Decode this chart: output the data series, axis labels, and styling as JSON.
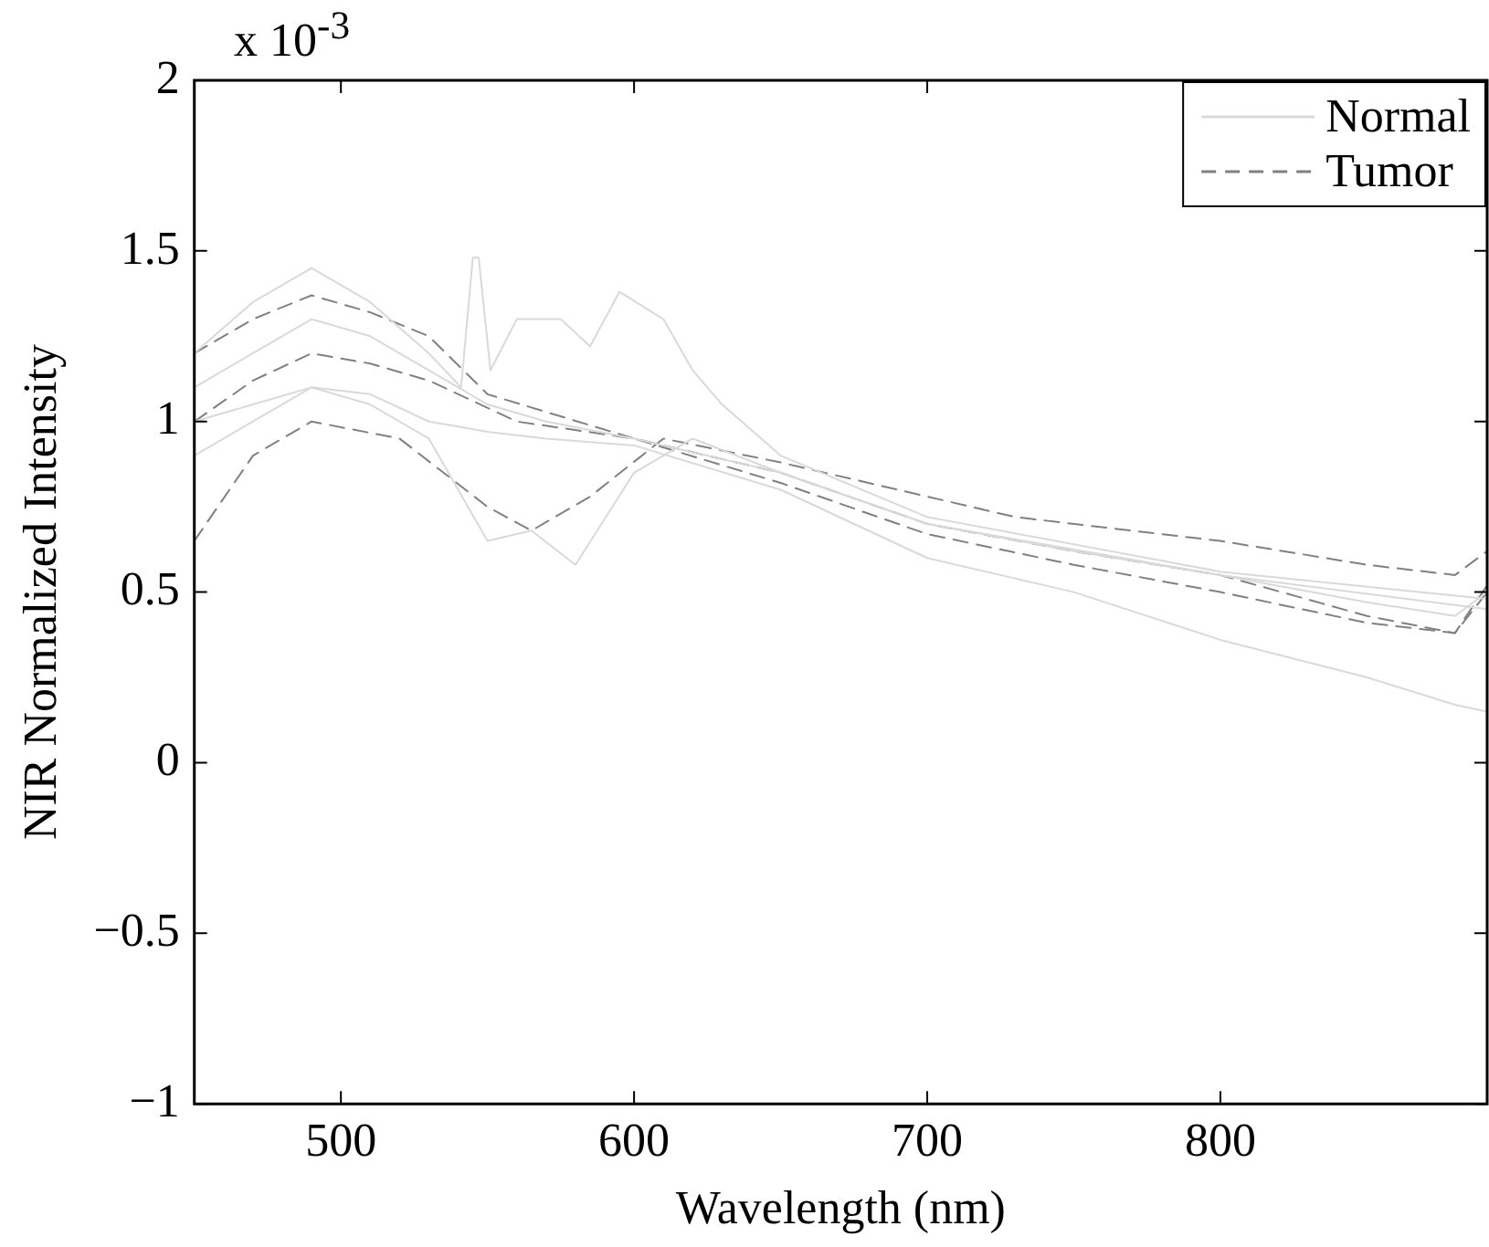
{
  "chart_data": {
    "type": "line",
    "xlabel": "Wavelength (nm)",
    "ylabel": "NIR Normalized Intensity",
    "annotations": [
      "x 10$^{-3}$"
    ],
    "xlim": [
      450,
      891
    ],
    "ylim": [
      -1,
      2
    ],
    "xticks": [
      500,
      600,
      700,
      800
    ],
    "yticks": [
      -1,
      -0.5,
      0,
      0.5,
      1,
      1.5,
      2
    ],
    "grid": false,
    "legend": "top right",
    "marker": "none",
    "series": [
      {
        "name": "Normal",
        "color": "#d9d9d9",
        "line_style": "solid",
        "x": [
          450,
          470,
          490,
          510,
          530,
          550,
          570,
          600,
          650,
          700,
          750,
          800,
          850,
          880,
          891
        ],
        "values": [
          1.1,
          1.2,
          1.3,
          1.25,
          1.15,
          1.05,
          1.0,
          0.95,
          0.85,
          0.7,
          0.62,
          0.55,
          0.47,
          0.43,
          0.5
        ]
      },
      {
        "color": "#d9d9d9",
        "line_style": "solid",
        "x": [
          450,
          470,
          490,
          510,
          530,
          550,
          570,
          600,
          650,
          700,
          750,
          800,
          850,
          880,
          891
        ],
        "values": [
          0.9,
          1.0,
          1.1,
          1.08,
          1.0,
          0.97,
          0.95,
          0.93,
          0.8,
          0.6,
          0.5,
          0.36,
          0.25,
          0.17,
          0.15
        ]
      },
      {
        "color": "#d9d9d9",
        "line_style": "solid",
        "x": [
          450,
          470,
          490,
          510,
          530,
          541,
          545,
          547,
          551,
          560,
          575,
          585,
          595,
          610,
          620,
          630,
          650,
          700,
          800,
          891
        ],
        "values": [
          1.2,
          1.35,
          1.45,
          1.35,
          1.2,
          1.1,
          1.48,
          1.48,
          1.15,
          1.3,
          1.3,
          1.22,
          1.38,
          1.3,
          1.15,
          1.05,
          0.9,
          0.72,
          0.56,
          0.48
        ]
      },
      {
        "color": "#d9d9d9",
        "line_style": "solid",
        "x": [
          450,
          470,
          490,
          510,
          530,
          550,
          565,
          580,
          600,
          620,
          650,
          700,
          800,
          891
        ],
        "values": [
          1.0,
          1.05,
          1.1,
          1.05,
          0.95,
          0.65,
          0.68,
          0.58,
          0.85,
          0.95,
          0.85,
          0.7,
          0.55,
          0.45
        ]
      },
      {
        "name": "Tumor",
        "color": "#808080",
        "line_style": "dashed",
        "x": [
          450,
          470,
          490,
          510,
          530,
          550,
          600,
          650,
          700,
          750,
          800,
          850,
          880,
          891
        ],
        "values": [
          1.2,
          1.3,
          1.37,
          1.32,
          1.25,
          1.08,
          0.95,
          0.85,
          0.7,
          0.62,
          0.55,
          0.43,
          0.38,
          0.52
        ]
      },
      {
        "color": "#808080",
        "line_style": "dashed",
        "x": [
          450,
          470,
          490,
          510,
          530,
          560,
          600,
          650,
          700,
          750,
          800,
          850,
          880,
          891
        ],
        "values": [
          1.0,
          1.12,
          1.2,
          1.17,
          1.12,
          1.0,
          0.95,
          0.82,
          0.67,
          0.58,
          0.5,
          0.41,
          0.38,
          0.5
        ]
      },
      {
        "color": "#808080",
        "line_style": "dashed",
        "x": [
          450,
          470,
          490,
          520,
          550,
          565,
          585,
          610,
          650,
          700,
          730,
          800,
          850,
          880,
          891
        ],
        "values": [
          0.65,
          0.9,
          1.0,
          0.95,
          0.75,
          0.68,
          0.78,
          0.95,
          0.88,
          0.78,
          0.72,
          0.65,
          0.58,
          0.55,
          0.62
        ]
      }
    ]
  }
}
